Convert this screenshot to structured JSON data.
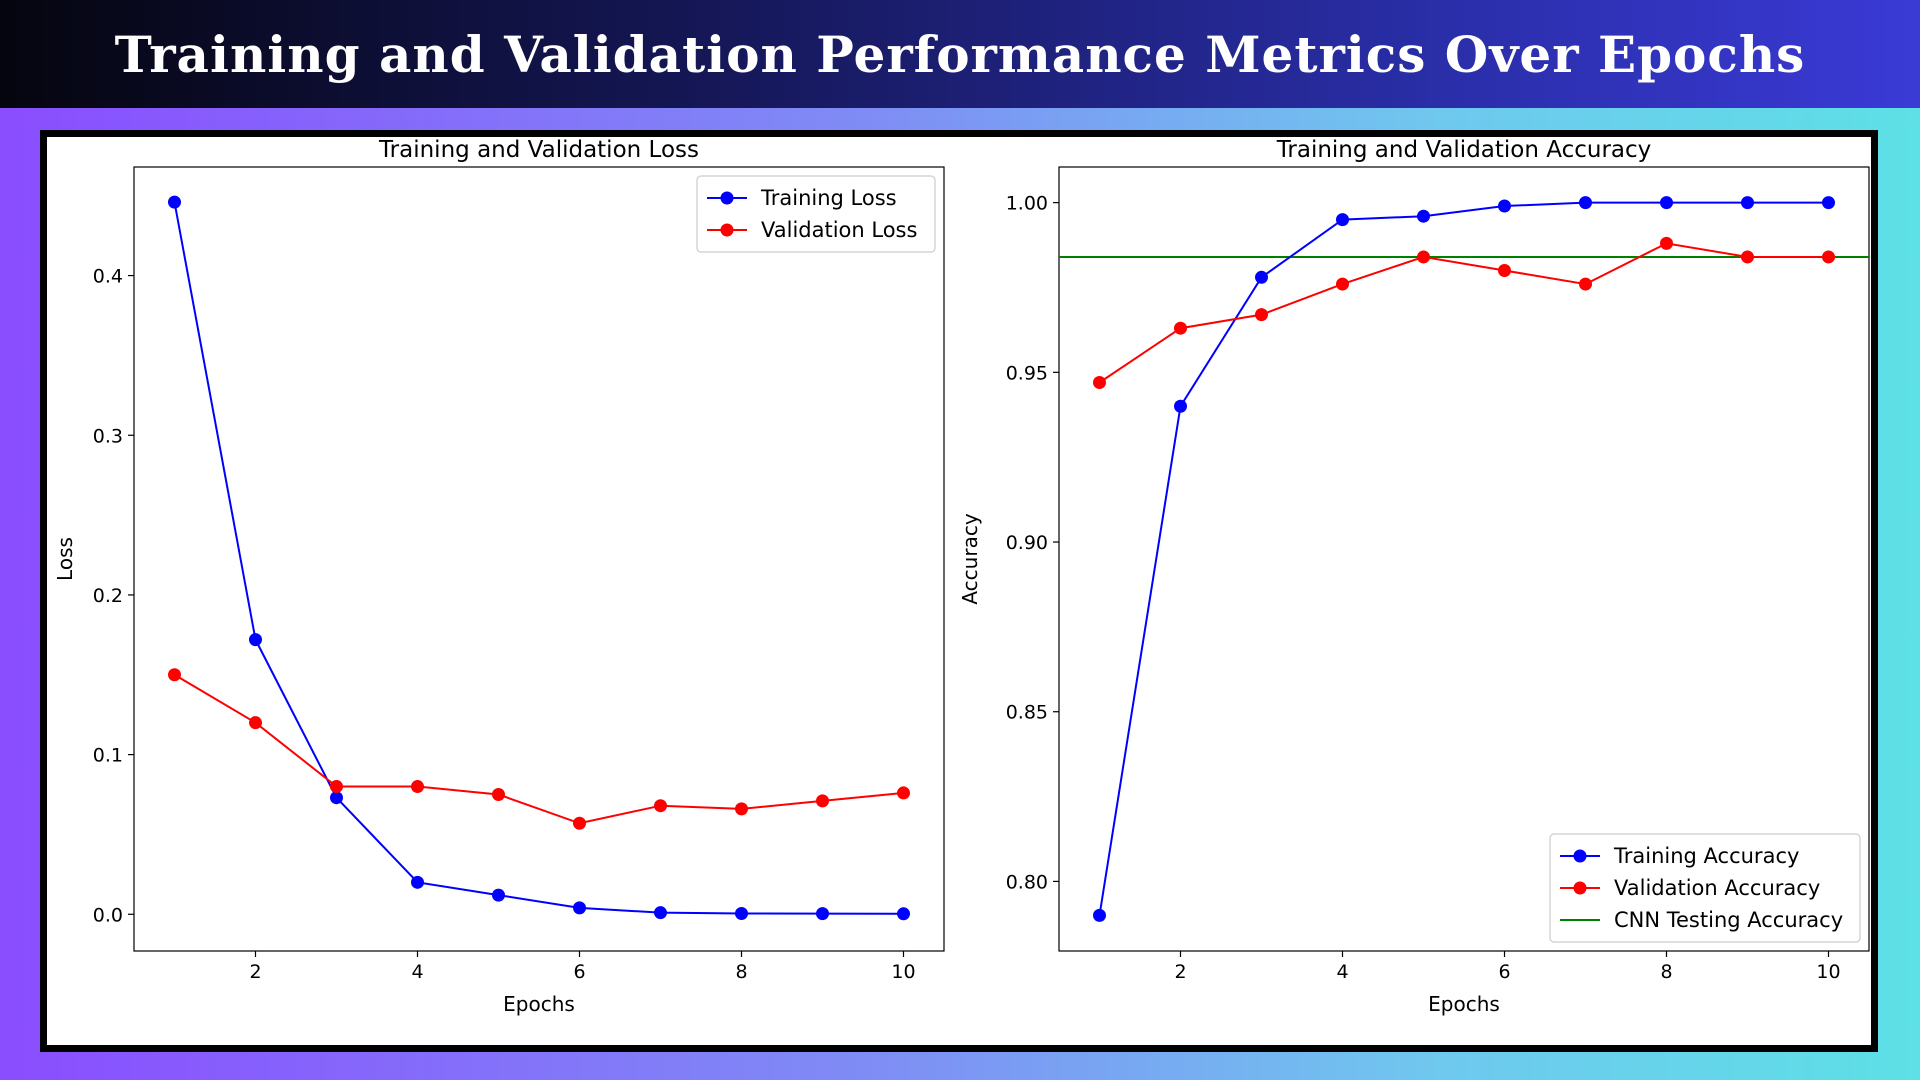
{
  "page": {
    "title": "Training and Validation Performance Metrics Over Epochs"
  },
  "chart_data": [
    {
      "type": "line",
      "title": "Training and Validation Loss",
      "xlabel": "Epochs",
      "ylabel": "Loss",
      "x": [
        1,
        2,
        3,
        4,
        5,
        6,
        7,
        8,
        9,
        10
      ],
      "xlim": [
        0.5,
        10.5
      ],
      "ylim": [
        -0.023,
        0.468
      ],
      "xticks": [
        2,
        4,
        6,
        8,
        10
      ],
      "xtick_labels": [
        "2",
        "4",
        "6",
        "8",
        "10"
      ],
      "yticks": [
        0.0,
        0.1,
        0.2,
        0.3,
        0.4
      ],
      "ytick_labels": [
        "0.0",
        "0.1",
        "0.2",
        "0.3",
        "0.4"
      ],
      "grid": false,
      "legend_position": "top-right",
      "series": [
        {
          "name": "Training Loss",
          "color": "#0000ff",
          "marker": "circle",
          "values": [
            0.446,
            0.172,
            0.073,
            0.02,
            0.012,
            0.004,
            0.001,
            0.0005,
            0.0004,
            0.0003
          ]
        },
        {
          "name": "Validation Loss",
          "color": "#ff0000",
          "marker": "circle",
          "values": [
            0.15,
            0.12,
            0.08,
            0.08,
            0.075,
            0.057,
            0.068,
            0.066,
            0.071,
            0.076
          ]
        }
      ]
    },
    {
      "type": "line",
      "title": "Training and Validation Accuracy",
      "xlabel": "Epochs",
      "ylabel": "Accuracy",
      "x": [
        1,
        2,
        3,
        4,
        5,
        6,
        7,
        8,
        9,
        10
      ],
      "xlim": [
        0.5,
        10.5
      ],
      "ylim": [
        0.7795,
        1.0105
      ],
      "xticks": [
        2,
        4,
        6,
        8,
        10
      ],
      "xtick_labels": [
        "2",
        "4",
        "6",
        "8",
        "10"
      ],
      "yticks": [
        0.8,
        0.85,
        0.9,
        0.95,
        1.0
      ],
      "ytick_labels": [
        "0.80",
        "0.85",
        "0.90",
        "0.95",
        "1.00"
      ],
      "grid": false,
      "legend_position": "bottom-right",
      "series": [
        {
          "name": "Training Accuracy",
          "color": "#0000ff",
          "marker": "circle",
          "values": [
            0.79,
            0.94,
            0.978,
            0.995,
            0.996,
            0.999,
            1.0,
            1.0,
            1.0,
            1.0
          ]
        },
        {
          "name": "Validation Accuracy",
          "color": "#ff0000",
          "marker": "circle",
          "values": [
            0.947,
            0.963,
            0.967,
            0.976,
            0.984,
            0.98,
            0.976,
            0.988,
            0.984,
            0.984
          ]
        }
      ],
      "reference_lines": [
        {
          "name": "CNN Testing Accuracy",
          "color": "#008000",
          "value": 0.984
        }
      ]
    }
  ]
}
